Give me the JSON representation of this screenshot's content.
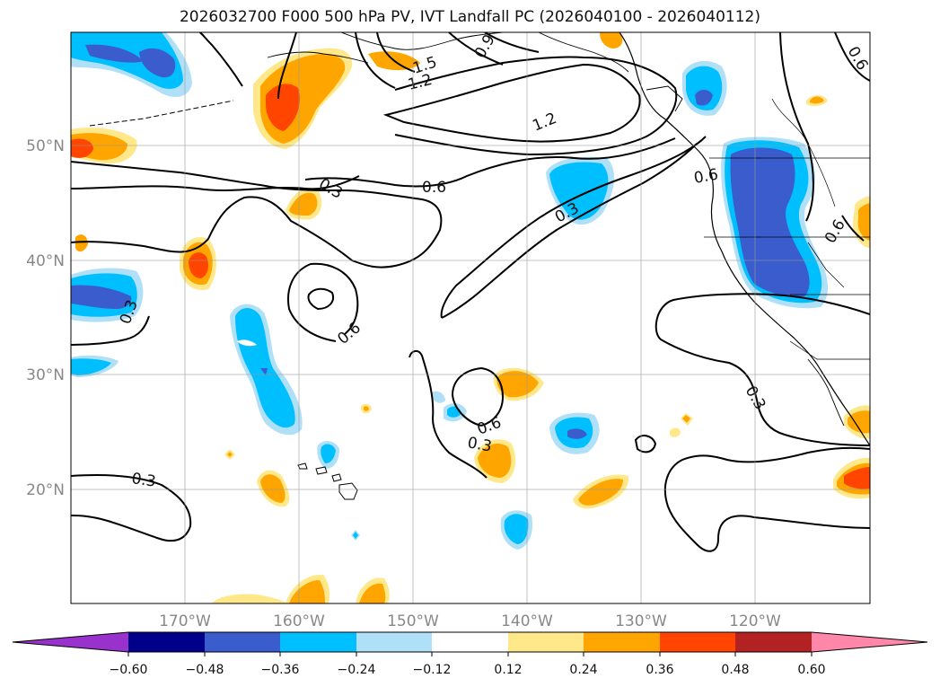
{
  "title": "2026032700 F000 500 hPa PV, IVT Landfall PC (2026040100 - 2026040112)",
  "lat_labels": [
    "50°N",
    "40°N",
    "30°N",
    "20°N"
  ],
  "lon_labels": [
    "170°W",
    "160°W",
    "150°W",
    "140°W",
    "130°W",
    "120°W"
  ],
  "contour_labels": [
    "1.5",
    "0.9",
    "1.2",
    "1.2",
    "0.3",
    "0.6",
    "0.3",
    "0.6",
    "0.6",
    "0.6",
    "0.3",
    "0.3",
    "0.3",
    "0.3",
    "0.6",
    "0.6"
  ],
  "colorbar": {
    "ticks": [
      "−0.60",
      "−0.48",
      "−0.36",
      "−0.24",
      "−0.12",
      "0.12",
      "0.24",
      "0.36",
      "0.48",
      "0.60"
    ],
    "colors": [
      "#9932cc",
      "#00008b",
      "#3a5ccc",
      "#00bfff",
      "#b0e0f8",
      "#ffffff",
      "#ffe88a",
      "#ffa500",
      "#ff4500",
      "#b22222",
      "#ff88aa"
    ]
  },
  "chart_data": {
    "type": "filled-contour-map",
    "variable_contours": "500 hPa PV",
    "variable_fill": "IVT Landfall PC",
    "lat_ticks": [
      50,
      40,
      30,
      20
    ],
    "lon_ticks": [
      -170,
      -160,
      -150,
      -140,
      -130,
      -120
    ],
    "lat_range": [
      10,
      60
    ],
    "lon_range": [
      -180,
      -110
    ],
    "contour_levels": [
      0.3,
      0.6,
      0.9,
      1.2,
      1.5
    ],
    "fill_levels": [
      -0.6,
      -0.48,
      -0.36,
      -0.24,
      -0.12,
      0.12,
      0.24,
      0.36,
      0.48,
      0.6
    ]
  }
}
